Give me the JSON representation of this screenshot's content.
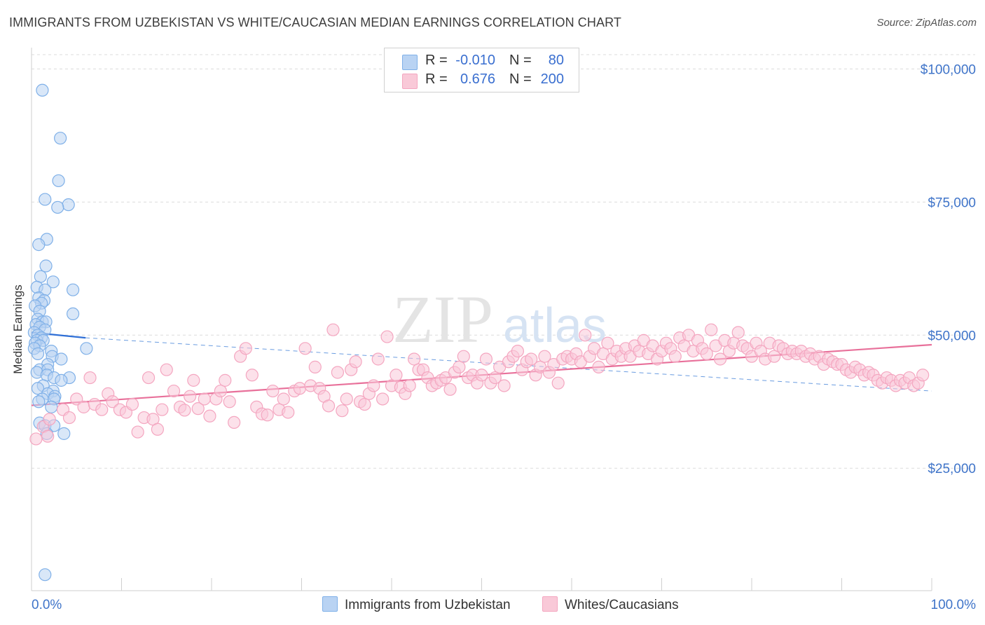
{
  "title": "IMMIGRANTS FROM UZBEKISTAN VS WHITE/CAUCASIAN MEDIAN EARNINGS CORRELATION CHART",
  "source": "Source: ZipAtlas.com",
  "watermark": {
    "zip": "ZIP",
    "atlas": "atlas"
  },
  "legend": {
    "rows": [
      {
        "r_label": "R =",
        "r_value": "-0.010",
        "n_label": "N =",
        "n_value": "80",
        "color": "#7fb0e8"
      },
      {
        "r_label": "R =",
        "r_value": "0.676",
        "n_label": "N =",
        "n_value": "200",
        "color": "#f4a6c0"
      }
    ]
  },
  "bottom_legend": [
    {
      "label": "Immigrants from Uzbekistan",
      "color": "#b9d3f3",
      "border": "#7fb0e8"
    },
    {
      "label": "Whites/Caucasians",
      "color": "#f9c9d8",
      "border": "#f4a6c0"
    }
  ],
  "chart_data": {
    "type": "scatter",
    "title": "IMMIGRANTS FROM UZBEKISTAN VS WHITE/CAUCASIAN MEDIAN EARNINGS CORRELATION CHART",
    "xlabel": "",
    "ylabel": "Median Earnings",
    "xlim": [
      0,
      100
    ],
    "ylim": [
      2000,
      104000
    ],
    "x_tick_labels": [
      "0.0%",
      "100.0%"
    ],
    "y_ticks": [
      25000,
      50000,
      75000,
      100000
    ],
    "y_tick_labels": [
      "$25,000",
      "$50,000",
      "$75,000",
      "$100,000"
    ],
    "grid": true,
    "series": [
      {
        "name": "Immigrants from Uzbekistan",
        "color": "#7fb0e8",
        "fill": "#b9d3f3",
        "trend": {
          "x": [
            0,
            6
          ],
          "y": [
            50500,
            49500
          ],
          "dashed_extension_to": [
            100,
            39500
          ]
        },
        "points": [
          [
            1.2,
            96000
          ],
          [
            3.2,
            87000
          ],
          [
            3.0,
            79000
          ],
          [
            1.5,
            75500
          ],
          [
            4.1,
            74500
          ],
          [
            2.9,
            74000
          ],
          [
            1.7,
            68000
          ],
          [
            0.8,
            67000
          ],
          [
            1.6,
            63000
          ],
          [
            1.0,
            61000
          ],
          [
            2.4,
            60000
          ],
          [
            0.6,
            59000
          ],
          [
            1.5,
            58500
          ],
          [
            4.6,
            58500
          ],
          [
            0.8,
            57000
          ],
          [
            1.4,
            56500
          ],
          [
            1.1,
            56000
          ],
          [
            0.4,
            55500
          ],
          [
            0.9,
            54500
          ],
          [
            4.6,
            54000
          ],
          [
            0.7,
            53000
          ],
          [
            1.2,
            52500
          ],
          [
            1.6,
            52500
          ],
          [
            0.5,
            52000
          ],
          [
            0.9,
            51500
          ],
          [
            1.5,
            51000
          ],
          [
            0.3,
            50500
          ],
          [
            0.7,
            50000
          ],
          [
            1.1,
            49500
          ],
          [
            0.6,
            49000
          ],
          [
            1.3,
            49000
          ],
          [
            0.4,
            48500
          ],
          [
            0.9,
            48000
          ],
          [
            0.3,
            47500
          ],
          [
            6.1,
            47500
          ],
          [
            2.2,
            47000
          ],
          [
            0.7,
            46500
          ],
          [
            2.3,
            46000
          ],
          [
            3.3,
            45500
          ],
          [
            1.8,
            44500
          ],
          [
            0.9,
            43500
          ],
          [
            1.8,
            43500
          ],
          [
            0.6,
            43000
          ],
          [
            1.7,
            42500
          ],
          [
            2.5,
            42000
          ],
          [
            4.2,
            42000
          ],
          [
            3.3,
            41500
          ],
          [
            1.3,
            40500
          ],
          [
            0.7,
            40000
          ],
          [
            2.4,
            39500
          ],
          [
            1.8,
            39000
          ],
          [
            2.6,
            38500
          ],
          [
            1.2,
            38000
          ],
          [
            2.5,
            38000
          ],
          [
            0.8,
            37500
          ],
          [
            2.2,
            36500
          ],
          [
            0.9,
            33500
          ],
          [
            1.5,
            33000
          ],
          [
            2.5,
            33000
          ],
          [
            1.7,
            31500
          ],
          [
            3.6,
            31500
          ],
          [
            1.5,
            5000
          ]
        ]
      },
      {
        "name": "Whites/Caucasians",
        "color": "#f4a6c0",
        "fill": "#f9c9d8",
        "trend": {
          "x": [
            0,
            100
          ],
          "y": [
            36800,
            48200
          ]
        },
        "points": [
          [
            0.5,
            30500
          ],
          [
            1.3,
            32800
          ],
          [
            2.0,
            34200
          ],
          [
            1.8,
            31000
          ],
          [
            3.5,
            36000
          ],
          [
            4.2,
            34500
          ],
          [
            5.0,
            38000
          ],
          [
            5.8,
            36500
          ],
          [
            6.5,
            42000
          ],
          [
            7.0,
            37000
          ],
          [
            7.8,
            36000
          ],
          [
            8.5,
            39000
          ],
          [
            9.0,
            37500
          ],
          [
            9.8,
            36000
          ],
          [
            10.5,
            35500
          ],
          [
            11.2,
            37000
          ],
          [
            11.8,
            31800
          ],
          [
            12.5,
            34500
          ],
          [
            13.0,
            42000
          ],
          [
            13.5,
            34200
          ],
          [
            14.0,
            32300
          ],
          [
            14.5,
            36000
          ],
          [
            15.0,
            43500
          ],
          [
            15.8,
            39500
          ],
          [
            16.5,
            36500
          ],
          [
            17.0,
            35900
          ],
          [
            17.6,
            38500
          ],
          [
            18.0,
            41500
          ],
          [
            18.5,
            36200
          ],
          [
            19.2,
            38000
          ],
          [
            19.8,
            34800
          ],
          [
            20.5,
            38000
          ],
          [
            21.0,
            39500
          ],
          [
            21.5,
            41500
          ],
          [
            22.0,
            37500
          ],
          [
            22.5,
            33600
          ],
          [
            23.2,
            46000
          ],
          [
            23.8,
            47500
          ],
          [
            24.5,
            42500
          ],
          [
            25.0,
            36500
          ],
          [
            25.6,
            35200
          ],
          [
            26.2,
            35000
          ],
          [
            26.8,
            39500
          ],
          [
            27.5,
            36000
          ],
          [
            28.0,
            38000
          ],
          [
            28.5,
            35500
          ],
          [
            29.2,
            39500
          ],
          [
            29.8,
            40000
          ],
          [
            30.4,
            47500
          ],
          [
            31.0,
            40500
          ],
          [
            31.5,
            44000
          ],
          [
            32.0,
            40000
          ],
          [
            32.5,
            38500
          ],
          [
            33.0,
            36700
          ],
          [
            33.5,
            51000
          ],
          [
            34.0,
            43000
          ],
          [
            34.5,
            35800
          ],
          [
            35.0,
            38000
          ],
          [
            35.5,
            43500
          ],
          [
            36.0,
            45000
          ],
          [
            36.5,
            37500
          ],
          [
            37.0,
            37000
          ],
          [
            37.5,
            39000
          ],
          [
            38.0,
            40500
          ],
          [
            38.5,
            45500
          ],
          [
            39.0,
            38000
          ],
          [
            39.5,
            49700
          ],
          [
            40.0,
            40500
          ],
          [
            40.5,
            42500
          ],
          [
            41.0,
            40200
          ],
          [
            41.5,
            39000
          ],
          [
            42.0,
            40500
          ],
          [
            42.5,
            45500
          ],
          [
            43.0,
            43500
          ],
          [
            43.5,
            43500
          ],
          [
            44.0,
            42000
          ],
          [
            44.5,
            40500
          ],
          [
            45.0,
            41000
          ],
          [
            45.5,
            41500
          ],
          [
            46.0,
            42000
          ],
          [
            46.5,
            39800
          ],
          [
            47.0,
            43000
          ],
          [
            47.5,
            44000
          ],
          [
            48.0,
            46000
          ],
          [
            48.5,
            42000
          ],
          [
            49.0,
            42500
          ],
          [
            49.5,
            41000
          ],
          [
            50.0,
            42500
          ],
          [
            50.5,
            45500
          ],
          [
            51.0,
            41000
          ],
          [
            51.5,
            42000
          ],
          [
            52.0,
            44000
          ],
          [
            52.5,
            40500
          ],
          [
            53.0,
            45000
          ],
          [
            53.5,
            46000
          ],
          [
            54.0,
            47000
          ],
          [
            54.5,
            43500
          ],
          [
            55.0,
            45000
          ],
          [
            55.5,
            45500
          ],
          [
            56.0,
            42500
          ],
          [
            56.5,
            44000
          ],
          [
            57.0,
            46000
          ],
          [
            57.5,
            43000
          ],
          [
            58.0,
            44500
          ],
          [
            58.5,
            41000
          ],
          [
            59.0,
            45500
          ],
          [
            59.5,
            46000
          ],
          [
            60.0,
            45500
          ],
          [
            60.5,
            46500
          ],
          [
            61.0,
            45000
          ],
          [
            61.5,
            50000
          ],
          [
            62.0,
            46000
          ],
          [
            62.5,
            47500
          ],
          [
            63.0,
            44000
          ],
          [
            63.5,
            46500
          ],
          [
            64.0,
            48500
          ],
          [
            64.5,
            45500
          ],
          [
            65.0,
            47000
          ],
          [
            65.5,
            46000
          ],
          [
            66.0,
            47500
          ],
          [
            66.5,
            46000
          ],
          [
            67.0,
            48000
          ],
          [
            67.5,
            47000
          ],
          [
            68.0,
            49000
          ],
          [
            68.5,
            46500
          ],
          [
            69.0,
            48000
          ],
          [
            69.5,
            45500
          ],
          [
            70.0,
            47000
          ],
          [
            70.5,
            48500
          ],
          [
            71.0,
            47500
          ],
          [
            71.5,
            46000
          ],
          [
            72.0,
            49500
          ],
          [
            72.5,
            48000
          ],
          [
            73.0,
            50000
          ],
          [
            73.5,
            47000
          ],
          [
            74.0,
            49000
          ],
          [
            74.5,
            47500
          ],
          [
            75.0,
            46500
          ],
          [
            75.5,
            51000
          ],
          [
            76.0,
            48000
          ],
          [
            76.5,
            45500
          ],
          [
            77.0,
            49000
          ],
          [
            77.5,
            47000
          ],
          [
            78.0,
            48500
          ],
          [
            78.5,
            50500
          ],
          [
            79.0,
            48000
          ],
          [
            79.5,
            47500
          ],
          [
            80.0,
            46000
          ],
          [
            80.5,
            48500
          ],
          [
            81.0,
            47000
          ],
          [
            81.5,
            45500
          ],
          [
            82.0,
            48500
          ],
          [
            82.5,
            46000
          ],
          [
            83.0,
            48000
          ],
          [
            83.5,
            47500
          ],
          [
            84.0,
            46500
          ],
          [
            84.5,
            47000
          ],
          [
            85.0,
            46500
          ],
          [
            85.5,
            47000
          ],
          [
            86.0,
            46000
          ],
          [
            86.5,
            46500
          ],
          [
            87.0,
            45500
          ],
          [
            87.5,
            46000
          ],
          [
            88.0,
            44500
          ],
          [
            88.5,
            45500
          ],
          [
            89.0,
            45000
          ],
          [
            89.5,
            44500
          ],
          [
            90.0,
            44500
          ],
          [
            90.5,
            43500
          ],
          [
            91.0,
            43000
          ],
          [
            91.5,
            44000
          ],
          [
            92.0,
            43500
          ],
          [
            92.5,
            42500
          ],
          [
            93.0,
            43000
          ],
          [
            93.5,
            42500
          ],
          [
            94.0,
            41500
          ],
          [
            94.5,
            41000
          ],
          [
            95.0,
            42000
          ],
          [
            95.5,
            41500
          ],
          [
            96.0,
            40500
          ],
          [
            96.5,
            41500
          ],
          [
            97.0,
            41000
          ],
          [
            97.5,
            42000
          ],
          [
            98.0,
            40500
          ],
          [
            98.5,
            41000
          ],
          [
            99.0,
            42500
          ]
        ]
      }
    ]
  }
}
